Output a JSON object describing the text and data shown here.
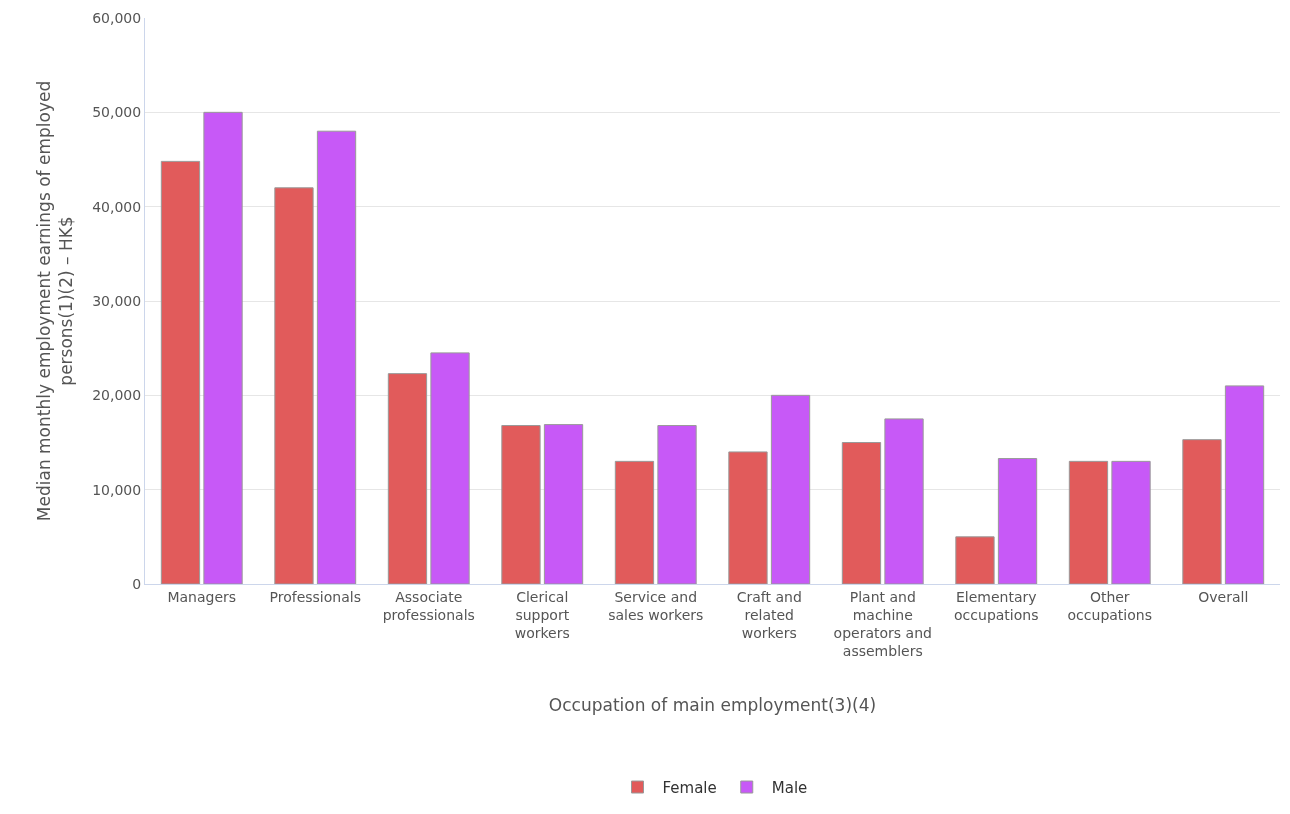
{
  "chart_data": {
    "type": "bar",
    "categories": [
      "Managers",
      "Professionals",
      "Associate professionals",
      "Clerical support workers",
      "Service and sales workers",
      "Craft and related workers",
      "Plant and machine operators and assemblers",
      "Elementary occupations",
      "Other occupations",
      "Overall"
    ],
    "series": [
      {
        "name": "Female",
        "color": "#e15b5b",
        "values": [
          44800,
          42000,
          22300,
          16800,
          13000,
          14000,
          15000,
          5000,
          13000,
          15300
        ]
      },
      {
        "name": "Male",
        "color": "#c759f7",
        "values": [
          50000,
          48000,
          24500,
          16900,
          16800,
          20000,
          17500,
          13300,
          13000,
          21000
        ]
      }
    ],
    "xlabel": "Occupation of main employment(3)(4)",
    "ylabel": "Median monthly employment earnings of employed persons(1)(2) – HK$",
    "ylim": [
      0,
      60000
    ],
    "yticks": [
      {
        "value": 0,
        "label": "0"
      },
      {
        "value": 10000,
        "label": "10,000"
      },
      {
        "value": 20000,
        "label": "20,000"
      },
      {
        "value": 30000,
        "label": "30,000"
      },
      {
        "value": 40000,
        "label": "40,000"
      },
      {
        "value": 50000,
        "label": "50,000"
      },
      {
        "value": 60000,
        "label": "60,000"
      }
    ],
    "grid": "y",
    "legend": "bottom"
  }
}
